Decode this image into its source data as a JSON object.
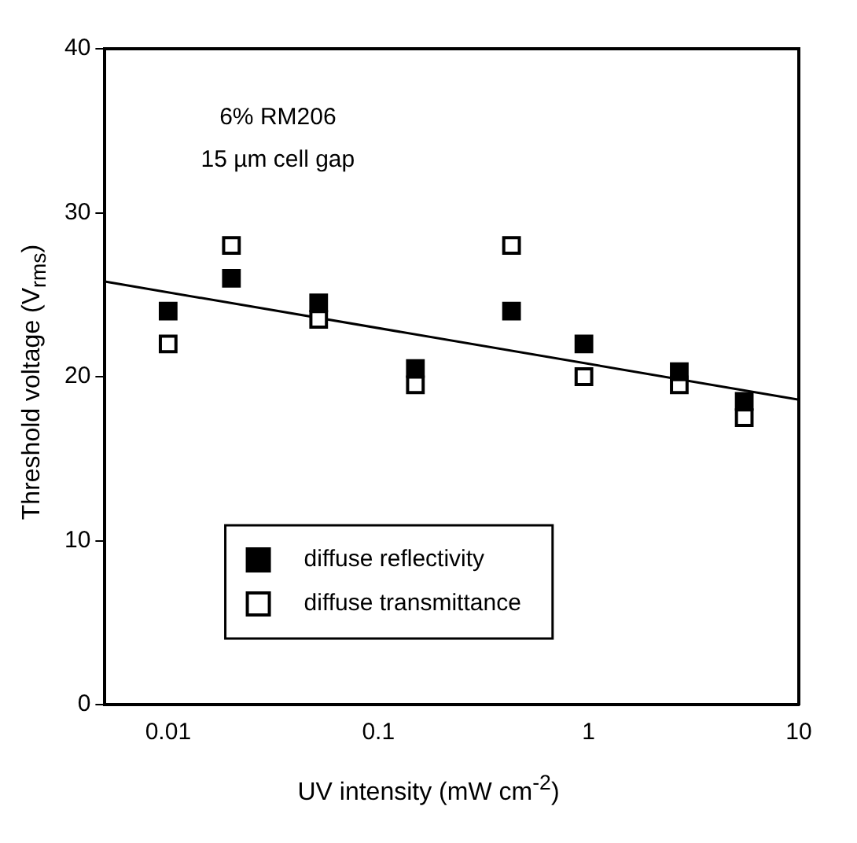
{
  "chart_data": {
    "type": "scatter",
    "xlabel": "UV intensity  (mW cm$^{-2}$)",
    "ylabel": "Threshold voltage  (V$_{rms}$)",
    "log": "x",
    "xlim": [
      0.005,
      10
    ],
    "ylim": [
      0,
      40
    ],
    "xticks": [
      0.01,
      0.1,
      1,
      10
    ],
    "yticks": [
      0,
      10,
      20,
      30,
      40
    ],
    "legend": "bottom",
    "marker": "square",
    "annotations": [
      "6% RM206",
      "15 µm cell gap"
    ],
    "x": [
      0.01,
      0.02,
      0.052,
      0.15,
      0.43,
      0.95,
      2.7,
      5.5
    ],
    "series": [
      {
        "name": "diffuse reflectivity",
        "color": "#000000",
        "values": [
          24,
          26,
          24.5,
          20.5,
          24,
          22,
          20.3,
          18.5
        ]
      },
      {
        "name": "diffuse transmittance",
        "color": "#ffffff",
        "values": [
          22,
          28,
          23.5,
          19.5,
          28,
          20,
          19.5,
          17.5
        ]
      },
      {
        "type": "line",
        "color": "#000000",
        "x": [
          0.005,
          10
        ],
        "values": [
          25.8,
          18.6
        ],
        "marker": "none",
        "line_style": "solid"
      }
    ]
  }
}
